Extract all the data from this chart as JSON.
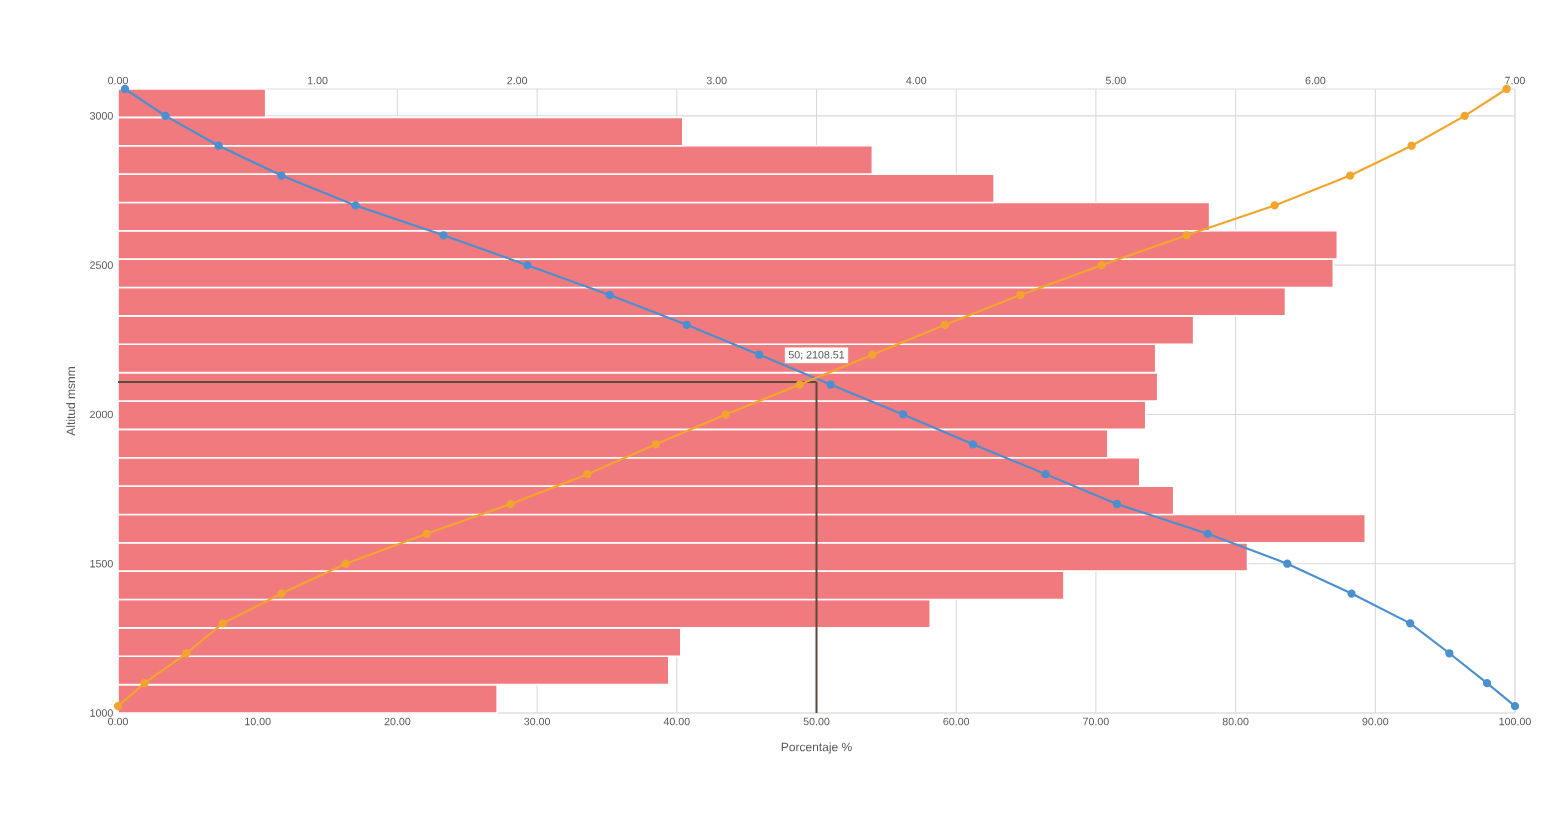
{
  "chart_data": {
    "type": "bar",
    "orientation": "horizontal",
    "xlabel": "Porcentaje %",
    "ylabel": "Altitud msnm",
    "series": [
      {
        "axis": "x2",
        "color": "#f07a7e",
        "x": [
          1047.5,
          1142.5,
          1237.5,
          1332.5,
          1427.5,
          1522.5,
          1617.5,
          1712.5,
          1807.5,
          1902.5,
          1997.5,
          2092.5,
          2187.5,
          2282.5,
          2377.5,
          2472.5,
          2567.5,
          2662.5,
          2757.5,
          2852.5,
          2947.5,
          3042.5
        ],
        "values": [
          1.9,
          2.76,
          2.82,
          4.07,
          4.74,
          5.66,
          6.25,
          5.29,
          5.12,
          4.96,
          5.15,
          5.21,
          5.2,
          5.39,
          5.85,
          6.09,
          6.11,
          5.47,
          4.39,
          3.78,
          2.83,
          0.74
        ]
      },
      {
        "type": "line",
        "color": "#4a90d0",
        "x": [
          1023,
          1100,
          1200,
          1300,
          1400,
          1500,
          1600,
          1700,
          1800,
          1900,
          2000,
          2100,
          2200,
          2300,
          2400,
          2500,
          2600,
          2700,
          2800,
          2900,
          3000,
          3090
        ],
        "values": [
          100,
          98.0,
          95.3,
          92.5,
          88.3,
          83.7,
          78.0,
          71.5,
          66.4,
          61.2,
          56.2,
          51.0,
          45.9,
          40.7,
          35.2,
          29.3,
          23.3,
          17.0,
          11.7,
          7.2,
          3.4,
          0.5
        ]
      },
      {
        "type": "line",
        "color": "#f2a52c",
        "x": [
          1023,
          1100,
          1200,
          1300,
          1400,
          1500,
          1600,
          1700,
          1800,
          1900,
          2000,
          2100,
          2200,
          2300,
          2400,
          2500,
          2600,
          2700,
          2800,
          2900,
          3000,
          3090
        ],
        "values": [
          0,
          1.9,
          4.9,
          7.5,
          11.7,
          16.3,
          22.1,
          28.1,
          33.6,
          38.5,
          43.5,
          48.8,
          54.0,
          59.2,
          64.6,
          70.4,
          76.5,
          82.8,
          88.2,
          92.6,
          96.4,
          99.4
        ]
      }
    ],
    "xlim": [
      0,
      100
    ],
    "xticks": [
      {
        "value": 0,
        "label": "0.00"
      },
      {
        "value": 10,
        "label": "10.00"
      },
      {
        "value": 20,
        "label": "20.00"
      },
      {
        "value": 30,
        "label": "30.00"
      },
      {
        "value": 40,
        "label": "40.00"
      },
      {
        "value": 50,
        "label": "50.00"
      },
      {
        "value": 60,
        "label": "60.00"
      },
      {
        "value": 70,
        "label": "70.00"
      },
      {
        "value": 80,
        "label": "80.00"
      },
      {
        "value": 90,
        "label": "90.00"
      },
      {
        "value": 100,
        "label": "100.00"
      }
    ],
    "x2lim": [
      0,
      7
    ],
    "x2ticks": [
      {
        "value": 0,
        "label": "0.00"
      },
      {
        "value": 1,
        "label": "1.00"
      },
      {
        "value": 2,
        "label": "2.00"
      },
      {
        "value": 3,
        "label": "3.00"
      },
      {
        "value": 4,
        "label": "4.00"
      },
      {
        "value": 5,
        "label": "5.00"
      },
      {
        "value": 6,
        "label": "6.00"
      },
      {
        "value": 7,
        "label": "7.00"
      }
    ],
    "ylim": [
      1000,
      3090
    ],
    "yticks": [
      1000,
      1500,
      2000,
      2500,
      3000
    ],
    "ref_lines": [
      {
        "axis": "x",
        "value": 50,
        "color": "#5a4a3a"
      },
      {
        "axis": "y",
        "value": 2108.51,
        "color": "#5a4a3a"
      }
    ],
    "annotations": [
      {
        "text": "50; 2108.51",
        "x": 50,
        "y": 2108.51
      }
    ],
    "grid": true,
    "marker": "circle",
    "line_style": "solid"
  }
}
